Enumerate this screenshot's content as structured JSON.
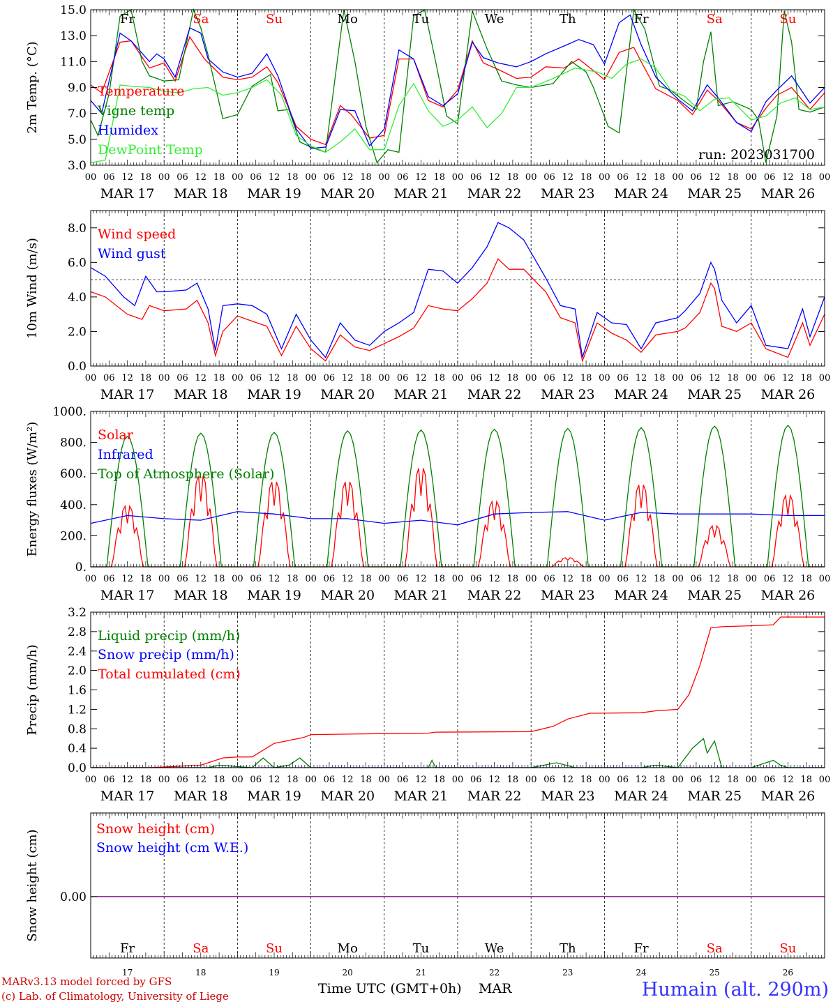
{
  "run_label": "run: 2023031700",
  "month": "MAR",
  "day_numbers": [
    "17",
    "18",
    "19",
    "20",
    "21",
    "22",
    "23",
    "24",
    "25",
    "26"
  ],
  "day_labels": [
    "MAR 17",
    "MAR 18",
    "MAR 19",
    "MAR 20",
    "MAR 21",
    "MAR 22",
    "MAR 23",
    "MAR 24",
    "MAR 25",
    "MAR 26"
  ],
  "weekdays": [
    {
      "label": "Fr",
      "weekend": false
    },
    {
      "label": "Sa",
      "weekend": true
    },
    {
      "label": "Su",
      "weekend": true
    },
    {
      "label": "Mo",
      "weekend": false
    },
    {
      "label": "Tu",
      "weekend": false
    },
    {
      "label": "We",
      "weekend": false
    },
    {
      "label": "Th",
      "weekend": false
    },
    {
      "label": "Fr",
      "weekend": false
    },
    {
      "label": "Sa",
      "weekend": true
    },
    {
      "label": "Su",
      "weekend": true
    }
  ],
  "hour_ticks": [
    "00",
    "06",
    "12",
    "18"
  ],
  "footer": {
    "model": "MARv3.13 model forced by GFS",
    "credit": "(c) Lab. of Climatology, University of Liege",
    "xlabel": "Time UTC (GMT+0h)",
    "month": "MAR",
    "station": "Humain (alt. 290m)"
  },
  "colors": {
    "red": "#ff0000",
    "dark_green": "#008000",
    "blue": "#0000ff",
    "light_green": "#33ee33",
    "purple": "#800080",
    "weekend": "#ff0000",
    "station": "#3333ff"
  },
  "chart_data": [
    {
      "type": "line",
      "ylabel": "2m Temp. (°C)",
      "ylim": [
        3,
        15
      ],
      "yticks": [
        "3.0",
        "5.0",
        "7.0",
        "9.0",
        "11.0",
        "13.0",
        "15.0"
      ],
      "x_unit": "days since MAR 17 00 UTC",
      "series": [
        {
          "name": "Temperature",
          "color": "#ff0000",
          "x": [
            0,
            0.15,
            0.4,
            0.55,
            0.8,
            1.0,
            1.15,
            1.35,
            1.55,
            1.8,
            2.0,
            2.2,
            2.4,
            2.55,
            2.8,
            3.0,
            3.2,
            3.4,
            3.55,
            3.8,
            4.0,
            4.2,
            4.4,
            4.6,
            4.8,
            5.0,
            5.2,
            5.35,
            5.55,
            5.8,
            6.0,
            6.2,
            6.45,
            6.65,
            6.85,
            7.0,
            7.2,
            7.4,
            7.5,
            7.7,
            8.0,
            8.2,
            8.4,
            8.55,
            8.8,
            9.0,
            9.2,
            9.35,
            9.55,
            9.8,
            10.0
          ],
          "y": [
            9.2,
            8.6,
            12.5,
            12.6,
            10.5,
            10.9,
            9.5,
            12.9,
            11.2,
            9.8,
            9.6,
            9.8,
            10.6,
            9.4,
            6.0,
            5.0,
            4.6,
            7.6,
            6.9,
            5.1,
            5.3,
            11.2,
            11.2,
            8.0,
            7.5,
            8.8,
            12.6,
            10.9,
            10.4,
            9.7,
            9.8,
            10.6,
            10.5,
            11.2,
            10.3,
            9.6,
            11.7,
            12.1,
            11.0,
            8.9,
            8.0,
            6.9,
            8.8,
            8.0,
            6.3,
            5.8,
            7.4,
            8.4,
            9.0,
            7.3,
            8.6
          ]
        },
        {
          "name": "Vigne temp",
          "color": "#008000",
          "x": [
            0,
            0.1,
            0.25,
            0.4,
            0.55,
            0.7,
            0.8,
            1.0,
            1.2,
            1.4,
            1.5,
            1.6,
            1.8,
            2.0,
            2.2,
            2.45,
            2.55,
            2.7,
            2.85,
            3.0,
            3.2,
            3.45,
            3.6,
            3.75,
            3.9,
            4.05,
            4.2,
            4.4,
            4.55,
            4.7,
            4.85,
            5.0,
            5.2,
            5.4,
            5.6,
            5.8,
            6.0,
            6.3,
            6.55,
            6.75,
            6.85,
            7.05,
            7.2,
            7.4,
            7.55,
            7.75,
            7.9,
            8.1,
            8.25,
            8.35,
            8.45,
            8.55,
            8.75,
            9.0,
            9.1,
            9.2,
            9.35,
            9.45,
            9.55,
            9.65,
            9.8,
            10.0
          ],
          "y": [
            6.5,
            5.3,
            8.5,
            14.5,
            15,
            11.0,
            9.9,
            9.5,
            9.6,
            15,
            13.6,
            11.5,
            6.6,
            6.9,
            9.1,
            10.0,
            7.2,
            7.3,
            4.8,
            4.4,
            4.0,
            15,
            11.0,
            6.0,
            3.2,
            4.2,
            4.0,
            14.5,
            15,
            11.0,
            6.8,
            6.2,
            14.9,
            12.0,
            9.5,
            9.2,
            9.0,
            9.3,
            11.0,
            10.2,
            9.0,
            6.0,
            5.5,
            15,
            13.5,
            9.1,
            8.8,
            7.9,
            7.3,
            11.0,
            13.3,
            7.6,
            7.9,
            7.3,
            6.5,
            3.2,
            6.8,
            14.9,
            12.5,
            7.3,
            7.1,
            7.5
          ]
        },
        {
          "name": "Humidex",
          "color": "#0000ff",
          "x": [
            0,
            0.15,
            0.4,
            0.55,
            0.8,
            0.9,
            1.0,
            1.15,
            1.35,
            1.5,
            1.6,
            1.8,
            2.0,
            2.2,
            2.4,
            2.55,
            2.8,
            3.0,
            3.2,
            3.4,
            3.6,
            3.8,
            4.0,
            4.2,
            4.4,
            4.6,
            4.8,
            5.0,
            5.2,
            5.35,
            5.55,
            5.8,
            6.0,
            6.2,
            6.45,
            6.65,
            6.85,
            7.0,
            7.2,
            7.35,
            7.5,
            7.7,
            8.0,
            8.2,
            8.4,
            8.55,
            8.8,
            9.0,
            9.2,
            9.35,
            9.55,
            9.8,
            10.0
          ],
          "y": [
            8.0,
            7.0,
            13.2,
            12.6,
            11.0,
            11.6,
            11.2,
            9.8,
            13.6,
            13.2,
            11.2,
            10.2,
            9.8,
            10.1,
            11.6,
            9.9,
            5.8,
            4.3,
            4.4,
            7.3,
            7.2,
            4.5,
            5.8,
            11.9,
            11.2,
            8.3,
            7.6,
            8.5,
            12.5,
            11.3,
            10.9,
            10.6,
            11.0,
            11.6,
            12.2,
            12.7,
            12.3,
            10.8,
            14.0,
            14.6,
            12.3,
            9.8,
            8.1,
            7.2,
            9.2,
            8.2,
            6.3,
            5.6,
            7.9,
            8.8,
            9.9,
            7.8,
            9.0
          ]
        },
        {
          "name": "DewPoint Temp",
          "color": "#33ee33",
          "x": [
            0,
            0.2,
            0.4,
            0.55,
            0.8,
            1.0,
            1.2,
            1.4,
            1.6,
            1.8,
            2.0,
            2.2,
            2.4,
            2.6,
            2.8,
            3.0,
            3.2,
            3.4,
            3.6,
            3.8,
            4.0,
            4.2,
            4.4,
            4.6,
            4.8,
            5.0,
            5.2,
            5.4,
            5.6,
            5.8,
            6.0,
            6.3,
            6.6,
            6.9,
            7.1,
            7.3,
            7.5,
            7.7,
            7.9,
            8.1,
            8.3,
            8.5,
            8.7,
            9.0,
            9.2,
            9.4,
            9.6,
            9.8,
            10.0
          ],
          "y": [
            3.2,
            3.4,
            9.2,
            9.1,
            9.0,
            8.7,
            8.6,
            8.9,
            9.0,
            8.4,
            8.6,
            9.0,
            9.6,
            8.4,
            5.3,
            4.5,
            4.0,
            4.8,
            5.8,
            4.2,
            4.2,
            7.6,
            9.3,
            7.2,
            6.0,
            6.5,
            7.5,
            5.9,
            7.0,
            9.0,
            9.0,
            9.7,
            10.5,
            10.2,
            9.7,
            10.8,
            11.2,
            10.5,
            8.8,
            8.3,
            7.2,
            8.1,
            8.2,
            6.5,
            6.8,
            7.8,
            8.2,
            7.3,
            7.5
          ]
        }
      ]
    },
    {
      "type": "line",
      "ylabel": "10m Wind (m/s)",
      "ylim": [
        0,
        9
      ],
      "yticks": [
        "0.0",
        "2.0",
        "4.0",
        "6.0",
        "8.0"
      ],
      "hline": 5,
      "series": [
        {
          "name": "Wind speed",
          "color": "#ff0000",
          "x": [
            0,
            0.2,
            0.5,
            0.7,
            0.8,
            1.0,
            1.3,
            1.45,
            1.6,
            1.7,
            1.8,
            2.0,
            2.2,
            2.4,
            2.6,
            2.8,
            3.0,
            3.2,
            3.4,
            3.6,
            3.8,
            4.0,
            4.2,
            4.4,
            4.6,
            4.8,
            5.0,
            5.2,
            5.4,
            5.55,
            5.7,
            5.9,
            6.2,
            6.4,
            6.6,
            6.7,
            6.9,
            7.1,
            7.3,
            7.5,
            7.7,
            8.0,
            8.1,
            8.3,
            8.45,
            8.5,
            8.6,
            8.8,
            9.0,
            9.2,
            9.5,
            9.7,
            9.8,
            10.0
          ],
          "y": [
            4.3,
            4.0,
            3.0,
            2.7,
            3.5,
            3.2,
            3.3,
            3.8,
            2.5,
            0.6,
            2.0,
            2.9,
            2.6,
            2.3,
            0.6,
            2.3,
            1.0,
            0.3,
            1.8,
            1.1,
            0.9,
            1.3,
            1.7,
            2.2,
            3.5,
            3.3,
            3.2,
            3.9,
            4.8,
            6.2,
            5.6,
            5.6,
            4.3,
            2.8,
            2.5,
            0.3,
            2.5,
            1.9,
            1.5,
            0.8,
            1.8,
            2.0,
            2.2,
            3.1,
            4.8,
            4.5,
            2.3,
            2.0,
            2.5,
            1.0,
            0.5,
            2.5,
            1.2,
            3.0
          ]
        },
        {
          "name": "Wind gust",
          "color": "#0000ff",
          "x": [
            0,
            0.2,
            0.45,
            0.6,
            0.75,
            0.9,
            1.0,
            1.3,
            1.45,
            1.6,
            1.7,
            1.8,
            2.0,
            2.2,
            2.4,
            2.6,
            2.8,
            3.0,
            3.2,
            3.4,
            3.6,
            3.8,
            4.0,
            4.2,
            4.4,
            4.6,
            4.8,
            5.0,
            5.2,
            5.4,
            5.55,
            5.7,
            5.9,
            6.2,
            6.4,
            6.6,
            6.7,
            6.9,
            7.1,
            7.3,
            7.5,
            7.7,
            8.0,
            8.1,
            8.3,
            8.45,
            8.5,
            8.6,
            8.8,
            9.0,
            9.2,
            9.5,
            9.7,
            9.8,
            10.0
          ],
          "y": [
            5.7,
            5.2,
            4.0,
            3.5,
            5.2,
            4.3,
            4.3,
            4.4,
            4.8,
            3.3,
            0.9,
            3.5,
            3.6,
            3.5,
            3.0,
            1.0,
            3.0,
            1.5,
            0.5,
            2.5,
            1.5,
            1.2,
            2.0,
            2.5,
            3.1,
            5.6,
            5.5,
            4.8,
            5.7,
            6.9,
            8.3,
            8.0,
            7.3,
            5.1,
            3.5,
            3.3,
            0.5,
            3.1,
            2.5,
            2.4,
            1.0,
            2.5,
            2.8,
            3.2,
            4.2,
            6.0,
            5.6,
            3.8,
            2.5,
            3.5,
            1.2,
            1.0,
            3.3,
            1.7,
            4.0
          ]
        }
      ]
    },
    {
      "type": "line",
      "ylabel": "Energy fluxes (W/m²)",
      "ylim": [
        0,
        1000
      ],
      "yticks": [
        "0.",
        "200.",
        "400.",
        "600.",
        "800.",
        "1000."
      ],
      "series": [
        {
          "name": "Solar",
          "color": "#ff0000",
          "peaks": [
            400,
            600,
            560,
            560,
            650,
            430,
            60,
            540,
            270,
            470
          ]
        },
        {
          "name": "Infrared",
          "color": "#0000ff",
          "x": [
            0,
            0.5,
            1,
            1.5,
            2,
            2.5,
            3,
            3.5,
            4,
            4.5,
            5,
            5.5,
            6,
            6.5,
            7,
            7.5,
            8,
            8.5,
            9,
            9.5,
            10
          ],
          "y": [
            280,
            330,
            310,
            300,
            355,
            340,
            310,
            310,
            280,
            300,
            270,
            340,
            350,
            355,
            300,
            350,
            340,
            340,
            340,
            330,
            330
          ]
        },
        {
          "name": "Top of Atmosphere (Solar)",
          "color": "#008000",
          "peaks": [
            840,
            860,
            865,
            875,
            880,
            885,
            890,
            895,
            905,
            910
          ]
        }
      ]
    },
    {
      "type": "line",
      "ylabel": "Precip (mm/h)",
      "ylim": [
        0,
        3.2
      ],
      "yticks": [
        "0.0",
        "0.4",
        "0.8",
        "1.2",
        "1.6",
        "2.0",
        "2.4",
        "2.8",
        "3.2"
      ],
      "series": [
        {
          "name": "Liquid precip (mm/h)",
          "color": "#008000",
          "x": [
            0,
            0.8,
            1.6,
            1.75,
            2.2,
            2.35,
            2.5,
            2.7,
            2.85,
            3.0,
            4.6,
            4.65,
            4.7,
            6.0,
            6.35,
            6.6,
            7.5,
            7.7,
            8.0,
            8.2,
            8.35,
            8.4,
            8.5,
            8.6,
            9.0,
            9.3,
            9.4,
            9.5,
            10.0
          ],
          "y": [
            0,
            0,
            0,
            0.05,
            0,
            0.2,
            0,
            0.05,
            0.2,
            0,
            0,
            0.15,
            0,
            0,
            0.1,
            0,
            0,
            0.05,
            0,
            0.4,
            0.6,
            0.3,
            0.55,
            0,
            0,
            0.15,
            0.05,
            0,
            0
          ]
        },
        {
          "name": "Snow precip (mm/h)",
          "color": "#0000ff",
          "x": [
            0,
            10
          ],
          "y": [
            0,
            0
          ]
        },
        {
          "name": "Total cumulated (cm)",
          "color": "#ff0000",
          "x": [
            0,
            0.8,
            1.5,
            1.8,
            2.0,
            2.2,
            2.5,
            2.9,
            3.0,
            4.0,
            4.6,
            4.7,
            6.0,
            6.3,
            6.5,
            6.8,
            7.5,
            7.7,
            8.0,
            8.15,
            8.3,
            8.45,
            8.6,
            9.0,
            9.3,
            9.4,
            10.0
          ],
          "y": [
            0,
            0,
            0.05,
            0.2,
            0.22,
            0.22,
            0.5,
            0.62,
            0.68,
            0.7,
            0.71,
            0.73,
            0.74,
            0.85,
            1.0,
            1.12,
            1.13,
            1.17,
            1.2,
            1.5,
            2.1,
            2.88,
            2.9,
            2.92,
            2.94,
            3.1,
            3.1
          ]
        }
      ]
    },
    {
      "type": "line",
      "ylabel": "Snow height (cm)",
      "yticks": [
        "0.00"
      ],
      "series": [
        {
          "name": "Snow height (cm)",
          "color": "#ff0000",
          "x": [
            0,
            10
          ],
          "y": [
            0,
            0
          ]
        },
        {
          "name": "Snow height (cm W.E.)",
          "color": "#0000ff",
          "x": [
            0,
            10
          ],
          "y": [
            0,
            0
          ]
        }
      ]
    }
  ]
}
